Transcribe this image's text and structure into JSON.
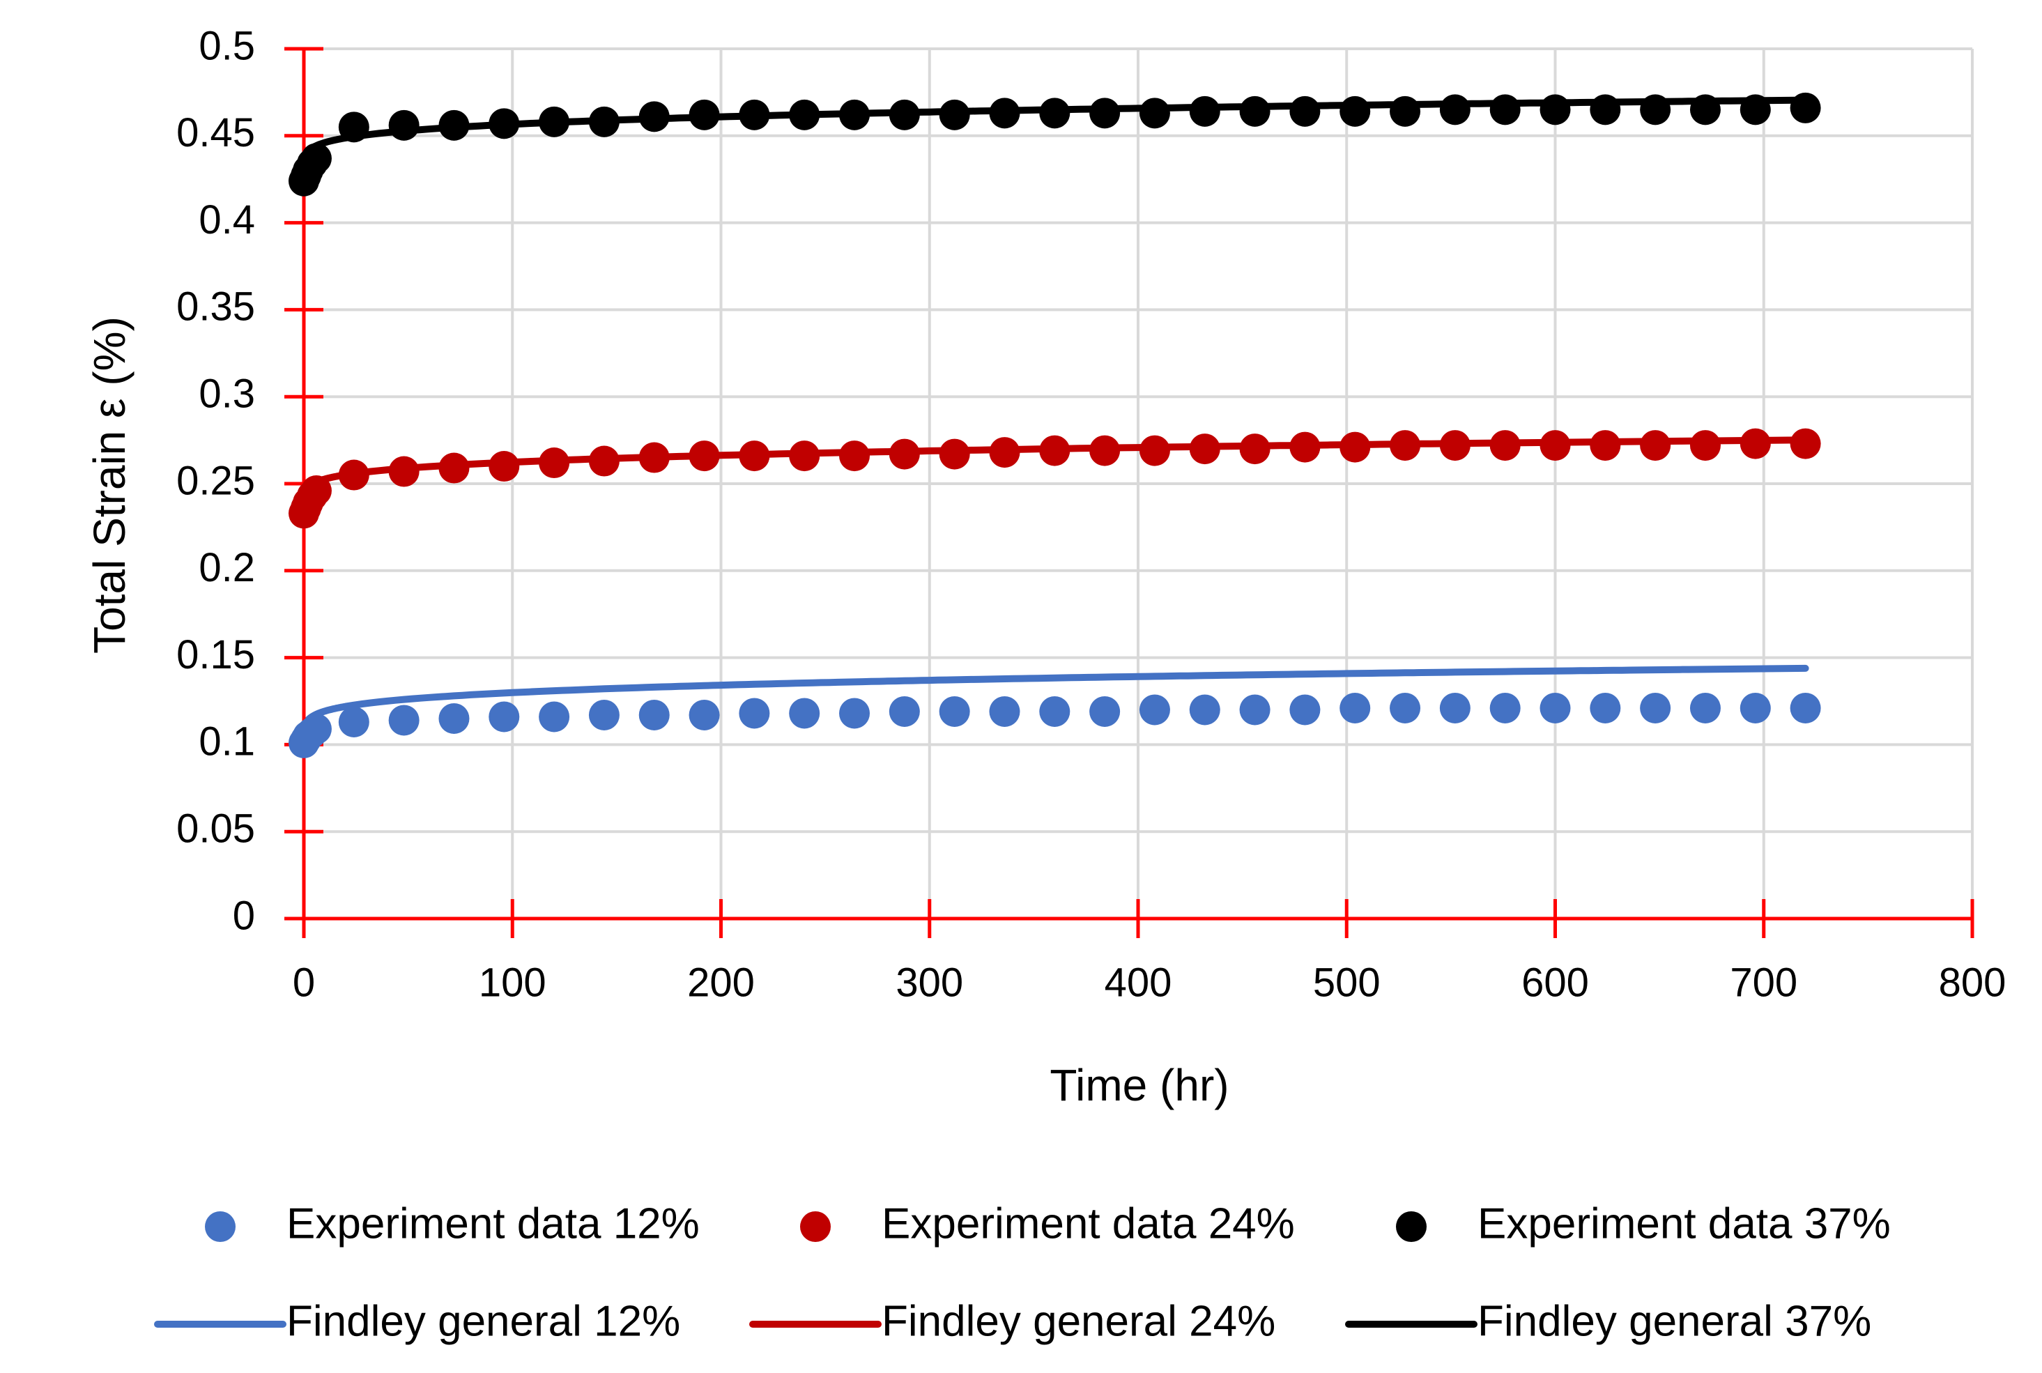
{
  "chart_data": {
    "type": "scatter",
    "title": "",
    "xlabel": "Time (hr)",
    "ylabel": "Total Strain ε (%)",
    "xlim": [
      0,
      800
    ],
    "ylim": [
      0,
      0.5
    ],
    "x_ticks": [
      "0",
      "100",
      "200",
      "300",
      "400",
      "500",
      "600",
      "700",
      "800"
    ],
    "y_ticks": [
      "0",
      "0.05",
      "0.1",
      "0.15",
      "0.2",
      "0.25",
      "0.3",
      "0.35",
      "0.4",
      "0.45",
      "0.5"
    ],
    "grid": true,
    "legend_position": "bottom",
    "colors": {
      "s12": "#4472c4",
      "s24": "#c00000",
      "s37": "#000000",
      "axis": "#ff0000",
      "grid": "#d9d9d9"
    },
    "x": [
      0,
      1,
      2,
      4,
      6,
      24,
      48,
      72,
      96,
      120,
      144,
      168,
      192,
      216,
      240,
      264,
      288,
      312,
      336,
      360,
      384,
      408,
      432,
      456,
      480,
      504,
      528,
      552,
      576,
      600,
      624,
      648,
      672,
      696,
      720
    ],
    "series": [
      {
        "name": "Experiment data 12%",
        "kind": "markers",
        "color_key": "s12",
        "values": [
          0.101,
          0.103,
          0.105,
          0.107,
          0.109,
          0.113,
          0.114,
          0.115,
          0.116,
          0.116,
          0.117,
          0.117,
          0.117,
          0.118,
          0.118,
          0.118,
          0.119,
          0.119,
          0.119,
          0.119,
          0.119,
          0.12,
          0.12,
          0.12,
          0.12,
          0.121,
          0.121,
          0.121,
          0.121,
          0.121,
          0.121,
          0.121,
          0.121,
          0.121,
          0.121
        ]
      },
      {
        "name": "Experiment data 24%",
        "kind": "markers",
        "color_key": "s24",
        "values": [
          0.233,
          0.236,
          0.239,
          0.243,
          0.246,
          0.255,
          0.257,
          0.259,
          0.26,
          0.262,
          0.263,
          0.265,
          0.266,
          0.266,
          0.266,
          0.266,
          0.267,
          0.267,
          0.268,
          0.269,
          0.269,
          0.269,
          0.27,
          0.27,
          0.271,
          0.271,
          0.272,
          0.272,
          0.272,
          0.272,
          0.272,
          0.272,
          0.272,
          0.273,
          0.273
        ]
      },
      {
        "name": "Experiment data 37%",
        "kind": "markers",
        "color_key": "s37",
        "values": [
          0.424,
          0.427,
          0.43,
          0.434,
          0.437,
          0.455,
          0.456,
          0.456,
          0.457,
          0.458,
          0.458,
          0.461,
          0.462,
          0.462,
          0.462,
          0.462,
          0.462,
          0.462,
          0.463,
          0.463,
          0.463,
          0.463,
          0.464,
          0.464,
          0.464,
          0.464,
          0.464,
          0.465,
          0.465,
          0.465,
          0.465,
          0.465,
          0.465,
          0.465,
          0.466
        ]
      },
      {
        "name": "Findley general 12%",
        "kind": "line",
        "color_key": "s12",
        "model": {
          "e0": 0.101,
          "m": 0.0115,
          "n": 0.2
        }
      },
      {
        "name": "Findley general 24%",
        "kind": "line",
        "color_key": "s24",
        "model": {
          "e0": 0.236,
          "m": 0.0105,
          "n": 0.2
        }
      },
      {
        "name": "Findley general 37%",
        "kind": "line",
        "color_key": "s37",
        "model": {
          "e0": 0.428,
          "m": 0.0114,
          "n": 0.2
        }
      }
    ]
  }
}
